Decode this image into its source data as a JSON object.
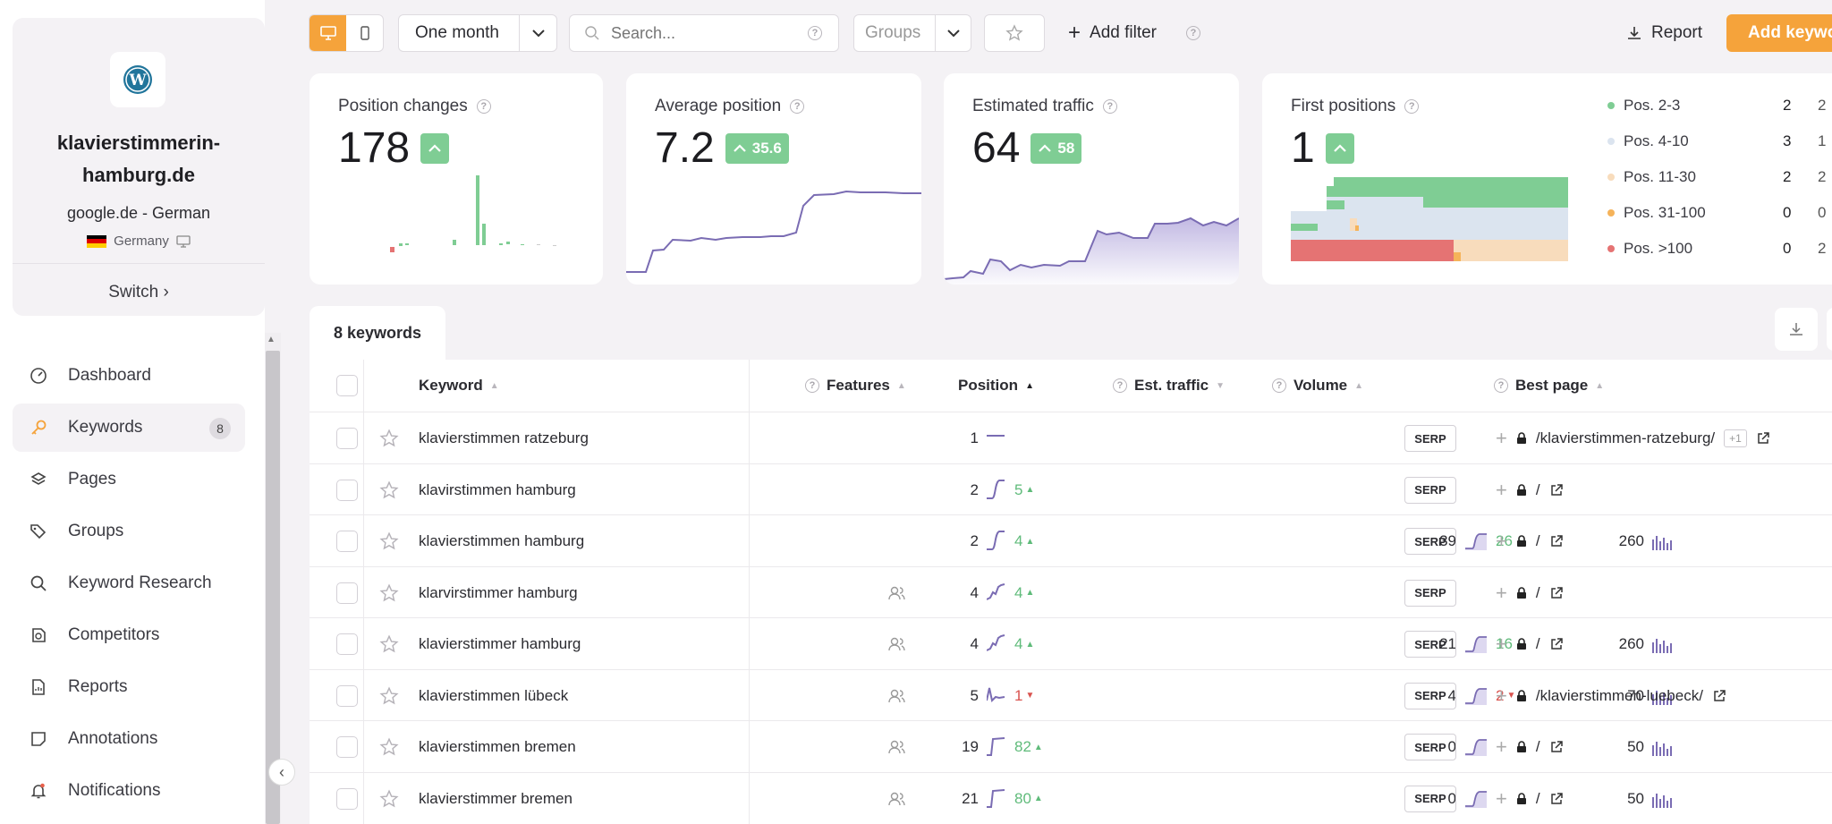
{
  "project": {
    "name_line1": "klavierstimmerin-",
    "name_line2": "hamburg.de",
    "engine": "google.de - German",
    "country": "Germany",
    "switch_label": "Switch"
  },
  "nav": [
    {
      "label": "Dashboard",
      "icon": "dashboard-icon"
    },
    {
      "label": "Keywords",
      "icon": "key-icon",
      "badge": "8",
      "active": true
    },
    {
      "label": "Pages",
      "icon": "layers-icon"
    },
    {
      "label": "Groups",
      "icon": "tags-icon"
    },
    {
      "label": "Keyword Research",
      "icon": "search-icon"
    },
    {
      "label": "Competitors",
      "icon": "competitors-icon"
    },
    {
      "label": "Reports",
      "icon": "report-icon"
    },
    {
      "label": "Annotations",
      "icon": "note-icon"
    },
    {
      "label": "Notifications",
      "icon": "bell-icon"
    }
  ],
  "toolbar": {
    "period": "One month",
    "search_placeholder": "Search...",
    "groups": "Groups",
    "add_filter": "Add filter",
    "report": "Report",
    "add_keyword": "Add keyword",
    "accent": "#f5a33b"
  },
  "cards": {
    "position_changes": {
      "title": "Position changes",
      "value": "178"
    },
    "average_position": {
      "title": "Average position",
      "value": "7.2",
      "delta": "35.6"
    },
    "estimated_traffic": {
      "title": "Estimated traffic",
      "value": "64",
      "delta": "58"
    },
    "first_positions": {
      "title": "First positions",
      "value": "1"
    }
  },
  "legend": [
    {
      "label": "Pos. 2-3",
      "a": "2",
      "b": "2",
      "color": "#7fcd94"
    },
    {
      "label": "Pos. 4-10",
      "a": "3",
      "b": "1",
      "color": "#dbe4ef"
    },
    {
      "label": "Pos. 11-30",
      "a": "2",
      "b": "2",
      "color": "#f8dcbc"
    },
    {
      "label": "Pos. 31-100",
      "a": "0",
      "b": "0",
      "color": "#f5b35a"
    },
    {
      "label": "Pos. >100",
      "a": "0",
      "b": "2",
      "color": "#e57373"
    }
  ],
  "tab_label": "8 keywords",
  "columns": {
    "keyword": "Keyword",
    "features": "Features",
    "position": "Position",
    "traffic": "Est. traffic",
    "volume": "Volume",
    "best_page": "Best page"
  },
  "serp_label": "SERP",
  "rows": [
    {
      "keyword": "klavierstimmen ratzeburg",
      "features": false,
      "position": "1",
      "pos_delta": "",
      "traffic": "",
      "traffic_delta": "",
      "volume": "",
      "page": "/klavierstimmen-ratzeburg/",
      "extra": "+1"
    },
    {
      "keyword": "klavirstimmen hamburg",
      "features": false,
      "position": "2",
      "pos_delta": "5",
      "pos_dir": "up",
      "traffic": "",
      "traffic_delta": "",
      "volume": "",
      "page": "/"
    },
    {
      "keyword": "klavierstimmen hamburg",
      "features": false,
      "position": "2",
      "pos_delta": "4",
      "pos_dir": "up",
      "traffic": "39",
      "traffic_delta": "26",
      "traffic_dir": "up",
      "volume": "260",
      "page": "/"
    },
    {
      "keyword": "klarvirstimmer hamburg",
      "features": true,
      "position": "4",
      "pos_delta": "4",
      "pos_dir": "up",
      "traffic": "",
      "traffic_delta": "",
      "volume": "",
      "page": "/"
    },
    {
      "keyword": "klavierstimmer hamburg",
      "features": true,
      "position": "4",
      "pos_delta": "4",
      "pos_dir": "up",
      "traffic": "21",
      "traffic_delta": "16",
      "traffic_dir": "up",
      "volume": "260",
      "page": "/"
    },
    {
      "keyword": "klavierstimmen lübeck",
      "features": true,
      "position": "5",
      "pos_delta": "1",
      "pos_dir": "down",
      "traffic": "4",
      "traffic_delta": "2",
      "traffic_dir": "down",
      "volume": "70",
      "page": "/klavierstimmen-luebeck/"
    },
    {
      "keyword": "klavierstimmen bremen",
      "features": true,
      "position": "19",
      "pos_delta": "82",
      "pos_dir": "up",
      "traffic": "0",
      "traffic_delta": "",
      "volume": "50",
      "page": "/"
    },
    {
      "keyword": "klavierstimmer bremen",
      "features": true,
      "position": "21",
      "pos_delta": "80",
      "pos_dir": "up",
      "traffic": "0",
      "traffic_delta": "",
      "volume": "50",
      "page": "/"
    }
  ]
}
